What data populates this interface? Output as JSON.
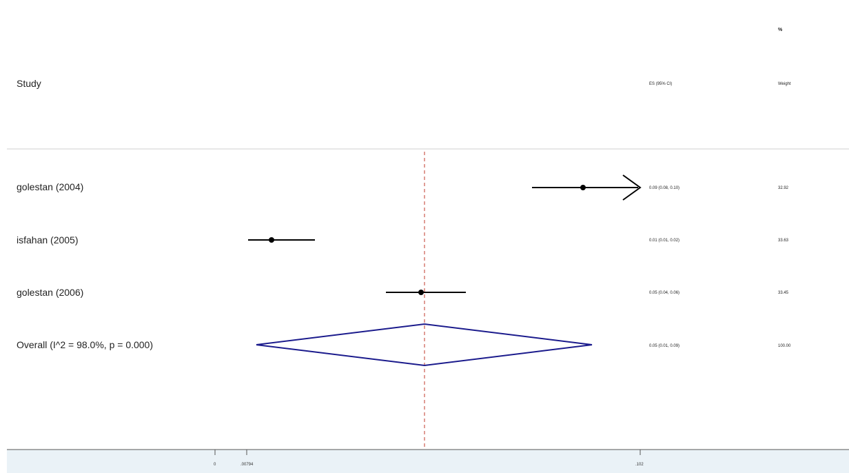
{
  "chart_data": {
    "type": "forest",
    "header": {
      "study": "Study",
      "es": "ES (95% CI)",
      "weight_pct": "%",
      "weight": "Weight"
    },
    "studies": [
      {
        "label": "golestan (2004)",
        "es": 0.09,
        "lower": 0.08,
        "upper": 0.1,
        "es_text": "0.09 (0.08, 0.10)",
        "weight": "32.92",
        "arrow_right": true
      },
      {
        "label": "isfahan (2005)",
        "es": 0.01,
        "lower": 0.01,
        "upper": 0.02,
        "es_text": "0.01 (0.01, 0.02)",
        "weight": "33.63"
      },
      {
        "label": "golestan (2006)",
        "es": 0.05,
        "lower": 0.04,
        "upper": 0.06,
        "es_text": "0.05 (0.04, 0.06)",
        "weight": "33.45"
      }
    ],
    "overall": {
      "label": "Overall  (I^2 = 98.0%, p = 0.000)",
      "es": 0.05,
      "lower": 0.01,
      "upper": 0.09,
      "es_text": "0.05 (0.01, 0.09)",
      "weight": "100.00"
    },
    "x_ticks": [
      "0",
      ".00794",
      ".102"
    ],
    "colors": {
      "diamond": "#1a1a8c",
      "ref_line": "#c0392b",
      "marker": "#000000",
      "axis": "#555555",
      "divider": "#cfcfcf",
      "band": "#eaf2f7"
    }
  }
}
